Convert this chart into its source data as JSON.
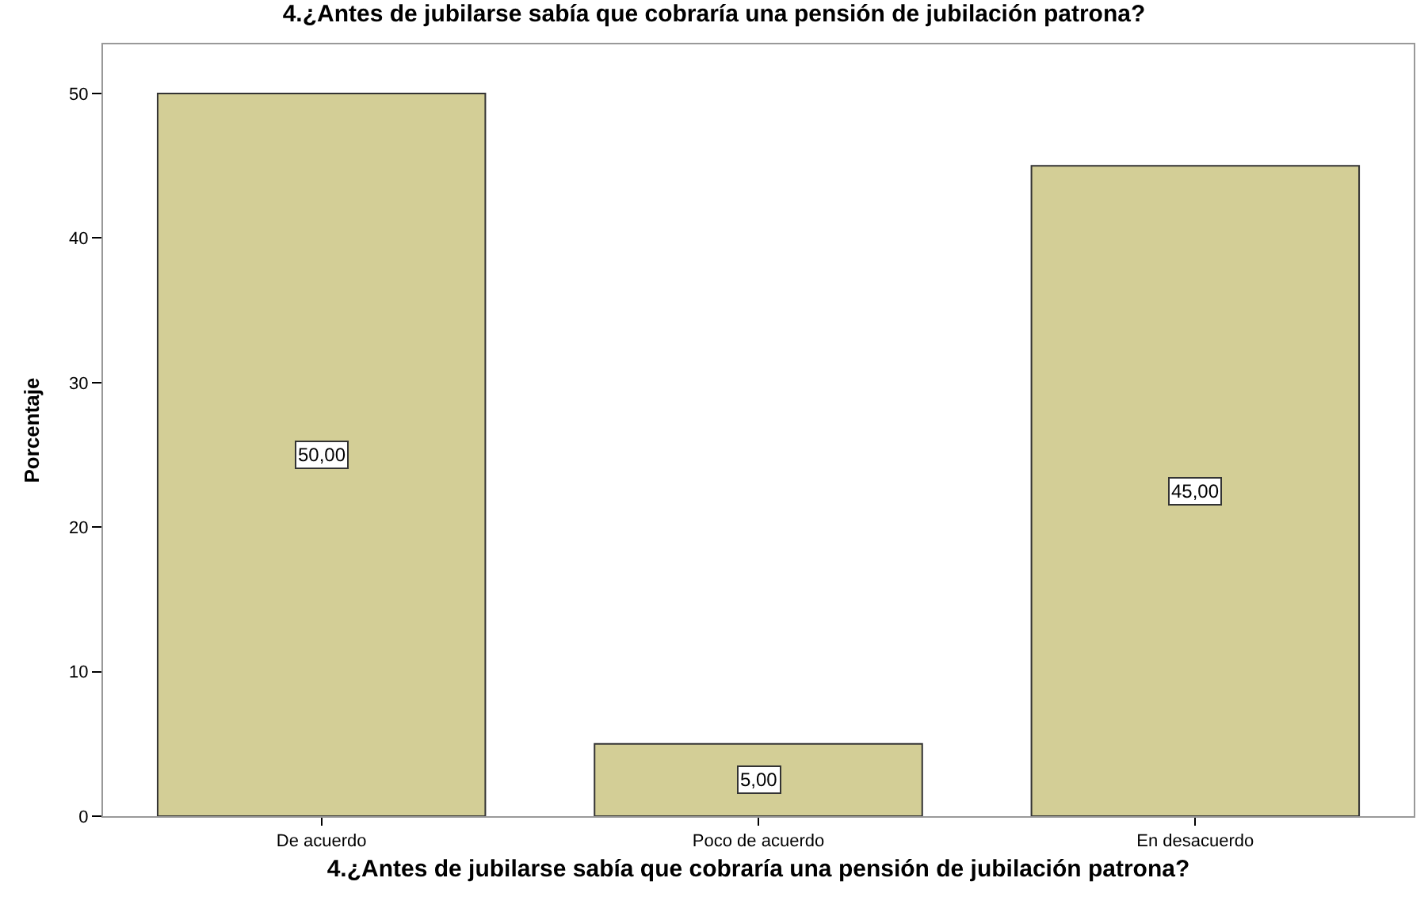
{
  "chart_data": {
    "type": "bar",
    "title": "4.¿Antes de jubilarse sabía que cobraría una pensión de jubilación patrona?",
    "xlabel": "4.¿Antes de jubilarse sabía que cobraría una pensión de jubilación patrona?",
    "ylabel": "Porcentaje",
    "categories": [
      "De acuerdo",
      "Poco de acuerdo",
      "En desacuerdo"
    ],
    "values": [
      50,
      5,
      45
    ],
    "value_labels": [
      "50,00",
      "5,00",
      "45,00"
    ],
    "color": "#d3ce96",
    "ylim": [
      0,
      53.4
    ],
    "yticks": [
      0,
      10,
      20,
      30,
      40,
      50
    ]
  }
}
